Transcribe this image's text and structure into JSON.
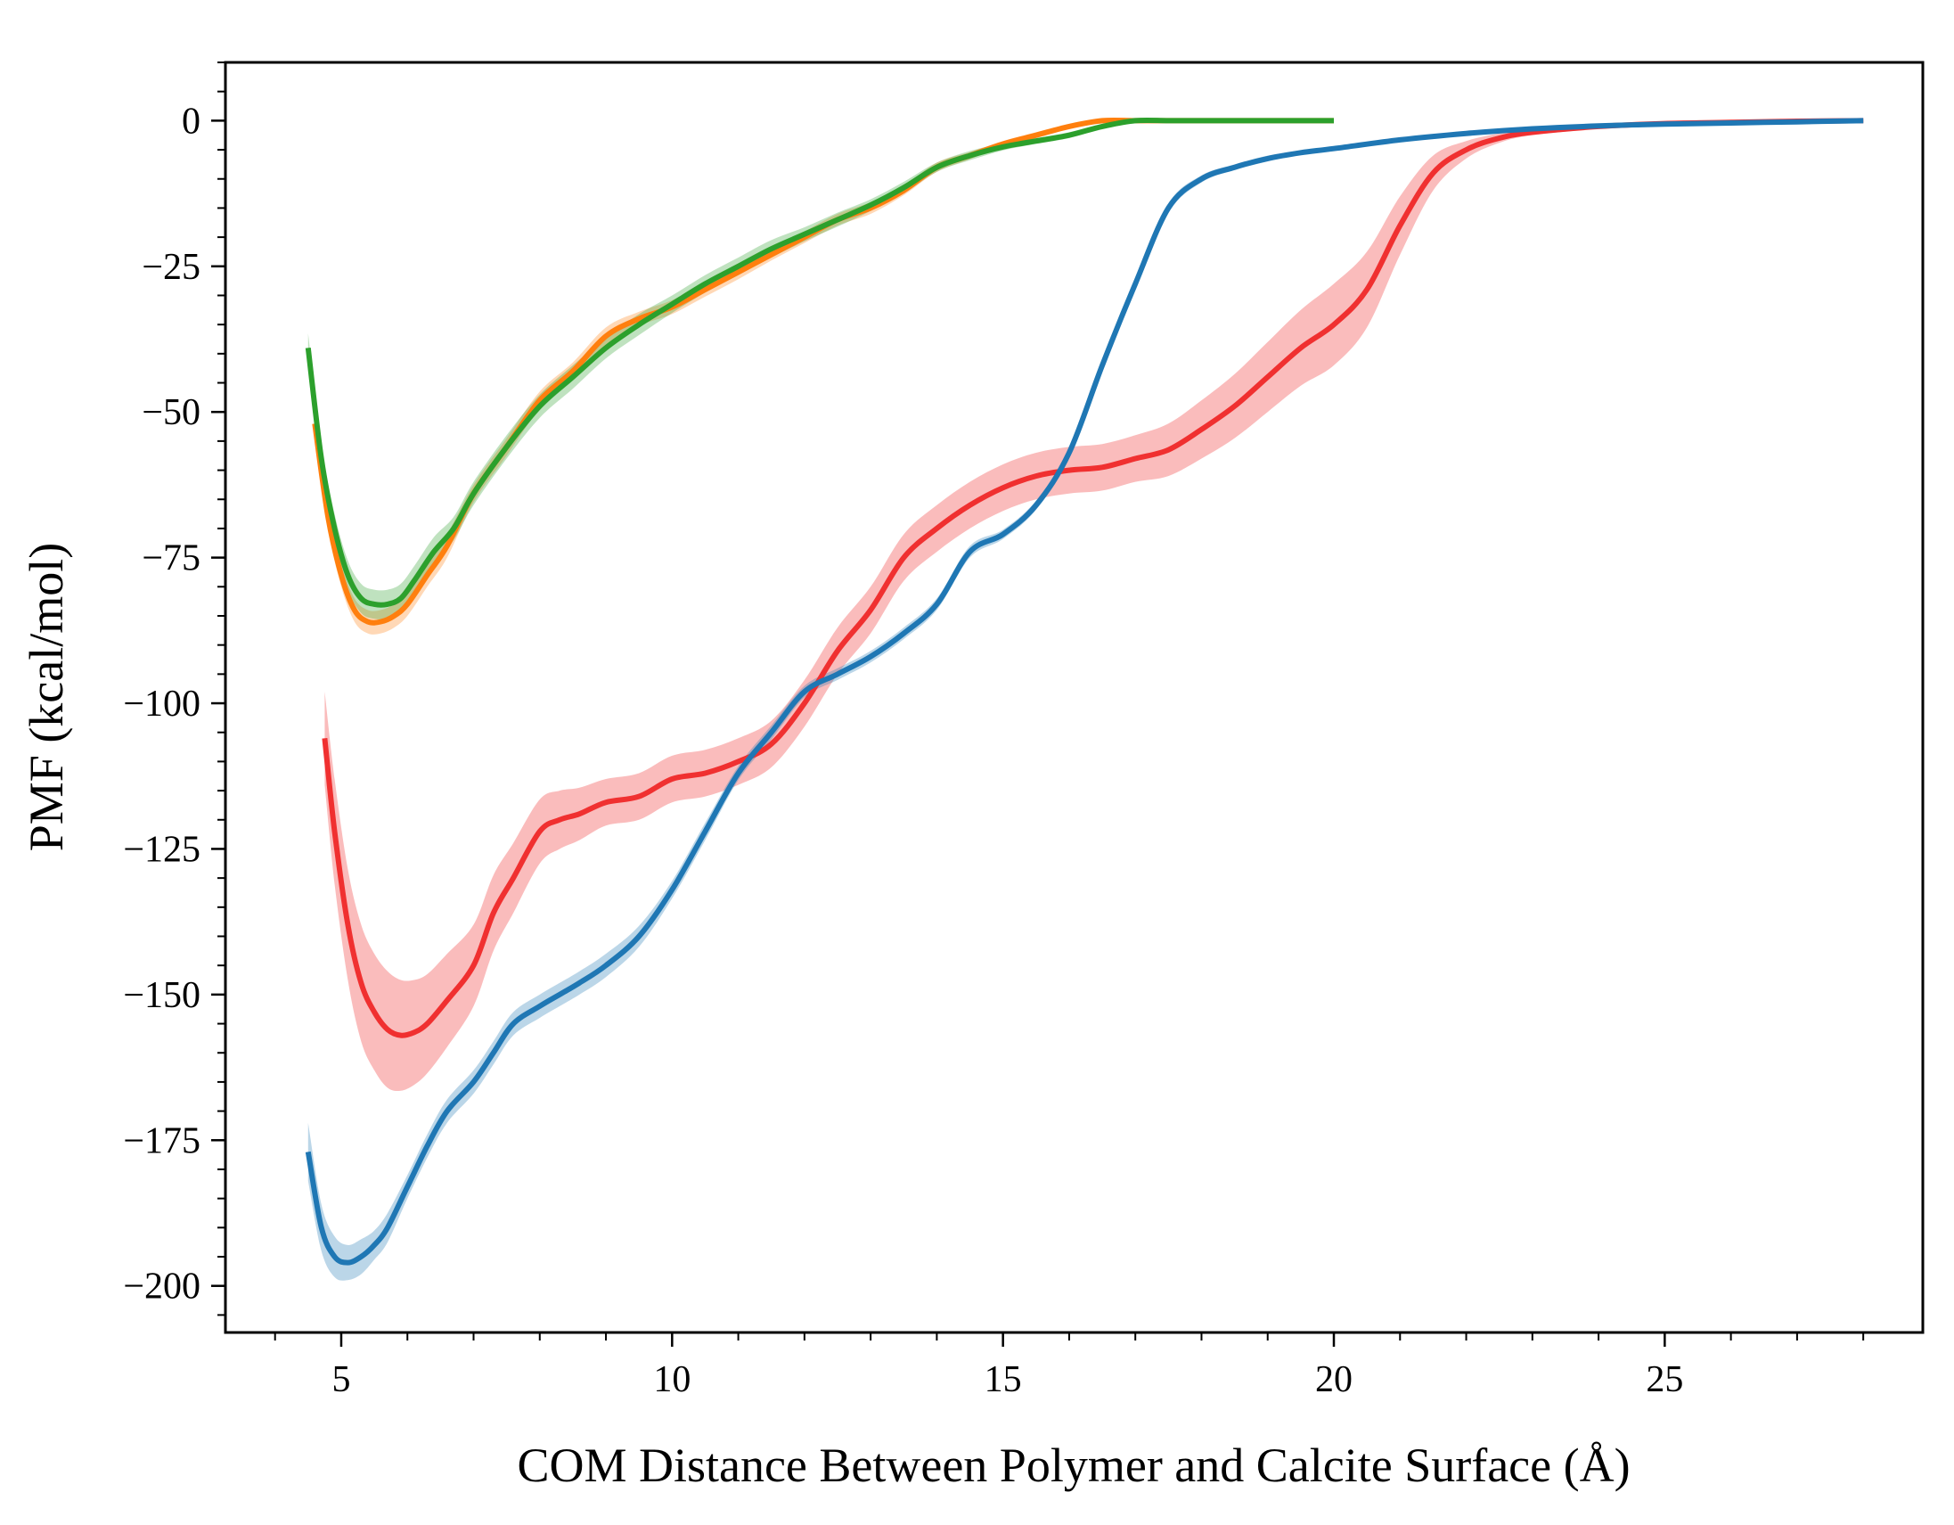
{
  "chart_data": {
    "type": "line",
    "title": "",
    "xlabel": "COM Distance Between Polymer and Calcite Surface (Å)",
    "ylabel": "PMF (kcal/mol)",
    "xlim": [
      3.25,
      28.9
    ],
    "ylim": [
      -208,
      10
    ],
    "xticks": [
      5,
      10,
      15,
      20,
      25
    ],
    "yticks": [
      0,
      -25,
      -50,
      -75,
      -100,
      -125,
      -150,
      -175,
      -200
    ],
    "xtick_labels": [
      "5",
      "10",
      "15",
      "20",
      "25"
    ],
    "ytick_labels": [
      "0",
      "−25",
      "−50",
      "−75",
      "−100",
      "−125",
      "−150",
      "−175",
      "−200"
    ],
    "x_minor_step": 1,
    "y_minor_step": 5,
    "grid": false,
    "legend": null,
    "series": [
      {
        "name": "orange",
        "color": "#ff7f0e",
        "band_opacity": 0.3,
        "x": [
          4.6,
          4.8,
          5.0,
          5.2,
          5.4,
          5.6,
          5.8,
          6.0,
          6.3,
          6.6,
          7.0,
          7.5,
          8.0,
          8.5,
          9.0,
          9.5,
          10.0,
          10.5,
          11.0,
          11.5,
          12.0,
          12.5,
          13.0,
          13.5,
          14.0,
          14.5,
          15.0,
          15.5,
          16.0,
          16.5,
          17.0,
          17.5,
          18.0,
          19.0,
          20.0
        ],
        "y": [
          -52,
          -68,
          -78,
          -84,
          -86,
          -86,
          -85,
          -83,
          -78,
          -73,
          -64,
          -56,
          -48,
          -43,
          -37,
          -34,
          -32,
          -29,
          -26,
          -23,
          -20,
          -17,
          -15,
          -12,
          -8,
          -6,
          -4,
          -2.5,
          -1,
          0,
          0,
          0,
          0,
          0,
          0
        ],
        "err": [
          2,
          2,
          2,
          2,
          2,
          2,
          2,
          2,
          2,
          2,
          1.5,
          1.5,
          1.5,
          1.5,
          1.5,
          1.2,
          1.2,
          1.2,
          1.2,
          1,
          1,
          1,
          1,
          0.8,
          0.8,
          0.6,
          0.5,
          0.5,
          0.4,
          0.3,
          0.2,
          0.2,
          0.2,
          0.2,
          0.2
        ]
      },
      {
        "name": "green",
        "color": "#2ca02c",
        "band_opacity": 0.3,
        "x": [
          4.5,
          4.7,
          4.9,
          5.1,
          5.3,
          5.5,
          5.7,
          5.9,
          6.1,
          6.4,
          6.7,
          7.0,
          7.5,
          8.0,
          8.5,
          9.0,
          9.5,
          10.0,
          10.5,
          11.0,
          11.5,
          12.0,
          12.5,
          13.0,
          13.5,
          14.0,
          14.5,
          15.0,
          15.5,
          16.0,
          16.5,
          17.0,
          17.5,
          18.0,
          19.0,
          20.0
        ],
        "y": [
          -39,
          -58,
          -70,
          -78,
          -82,
          -83,
          -83,
          -82,
          -79,
          -74,
          -70,
          -64,
          -56,
          -49,
          -44,
          -39,
          -35,
          -31.5,
          -28,
          -25,
          -22,
          -19.5,
          -17,
          -14.5,
          -11.5,
          -8,
          -6,
          -4.5,
          -3.5,
          -2.5,
          -1,
          0,
          0,
          0,
          0,
          0
        ],
        "err": [
          2.5,
          2.5,
          2.5,
          2.5,
          2.5,
          2.5,
          2.5,
          2.5,
          2.5,
          2.5,
          2,
          2,
          2,
          2,
          2,
          1.8,
          1.8,
          1.5,
          1.5,
          1.5,
          1.5,
          1.2,
          1.2,
          1,
          1,
          0.8,
          0.8,
          0.6,
          0.5,
          0.5,
          0.4,
          0.3,
          0.2,
          0.2,
          0.2,
          0.2
        ]
      },
      {
        "name": "red",
        "color": "#f03030",
        "band_opacity": 0.32,
        "x": [
          4.75,
          4.9,
          5.1,
          5.3,
          5.5,
          5.7,
          5.9,
          6.1,
          6.3,
          6.6,
          7.0,
          7.3,
          7.6,
          8.0,
          8.3,
          8.6,
          9.0,
          9.5,
          10.0,
          10.5,
          11.0,
          11.5,
          12.0,
          12.5,
          13.0,
          13.5,
          14.0,
          14.5,
          15.0,
          15.5,
          16.0,
          16.5,
          17.0,
          17.5,
          18.0,
          18.5,
          19.0,
          19.5,
          20.0,
          20.5,
          21.0,
          21.5,
          22.0,
          22.5,
          23.0,
          24.0,
          25.0,
          26.0,
          27.0,
          28.0
        ],
        "y": [
          -106,
          -122,
          -138,
          -148,
          -153,
          -156,
          -157,
          -156.5,
          -155,
          -151,
          -145,
          -136,
          -130,
          -122,
          -120,
          -119,
          -117,
          -116,
          -113,
          -112,
          -110,
          -107,
          -100,
          -91,
          -84,
          -75,
          -70,
          -66,
          -63,
          -61,
          -60,
          -59.5,
          -58,
          -56.5,
          -53,
          -49,
          -44,
          -39,
          -35,
          -29,
          -18,
          -9,
          -5,
          -3,
          -2,
          -1,
          -0.5,
          -0.3,
          -0.1,
          0
        ],
        "err": [
          8,
          9,
          9.5,
          10,
          10,
          10,
          9.5,
          9,
          8.5,
          8,
          7,
          6.5,
          6,
          5.5,
          5,
          4.5,
          4,
          4,
          4,
          4,
          4,
          4,
          4,
          4,
          4,
          4,
          4,
          4,
          4,
          4,
          4,
          4,
          4,
          4.5,
          5,
          5.5,
          6,
          6.5,
          7,
          6.5,
          5,
          3,
          1.5,
          0.8,
          0.5,
          0.4,
          0.3,
          0.3,
          0.3,
          0.3
        ]
      },
      {
        "name": "blue",
        "color": "#1f77b4",
        "band_opacity": 0.3,
        "x": [
          4.5,
          4.7,
          4.9,
          5.1,
          5.3,
          5.5,
          5.7,
          6.0,
          6.3,
          6.6,
          7.0,
          7.3,
          7.6,
          8.0,
          8.3,
          8.6,
          9.0,
          9.5,
          10.0,
          10.5,
          11.0,
          11.5,
          12.0,
          12.5,
          13.0,
          13.5,
          14.0,
          14.5,
          15.0,
          15.5,
          16.0,
          16.5,
          17.0,
          17.5,
          18.0,
          18.5,
          19.0,
          19.5,
          20.0,
          21.0,
          22.0,
          23.0,
          24.0,
          25.0,
          26.0,
          27.0,
          28.0
        ],
        "y": [
          -177,
          -190,
          -195,
          -196,
          -195,
          -193,
          -190,
          -183,
          -176,
          -170,
          -165,
          -160,
          -155,
          -152,
          -150,
          -148,
          -145,
          -140,
          -132,
          -122,
          -112,
          -105,
          -98,
          -95,
          -92,
          -88,
          -83,
          -74,
          -71,
          -66,
          -57,
          -42,
          -28,
          -15,
          -10,
          -8,
          -6.5,
          -5.5,
          -4.8,
          -3.3,
          -2.2,
          -1.4,
          -0.9,
          -0.6,
          -0.4,
          -0.2,
          0
        ],
        "err": [
          5,
          4,
          3.5,
          3,
          3,
          2.5,
          2.5,
          2,
          2,
          2,
          2,
          2,
          2,
          2,
          2,
          2,
          2,
          1.8,
          1.5,
          1.5,
          1.2,
          1.2,
          1,
          1,
          1,
          1,
          1,
          1,
          0.8,
          0.8,
          0.8,
          0.8,
          0.8,
          0.8,
          0.6,
          0.5,
          0.5,
          0.4,
          0.4,
          0.3,
          0.3,
          0.3,
          0.3,
          0.3,
          0.3,
          0.3,
          0.3
        ]
      }
    ]
  }
}
